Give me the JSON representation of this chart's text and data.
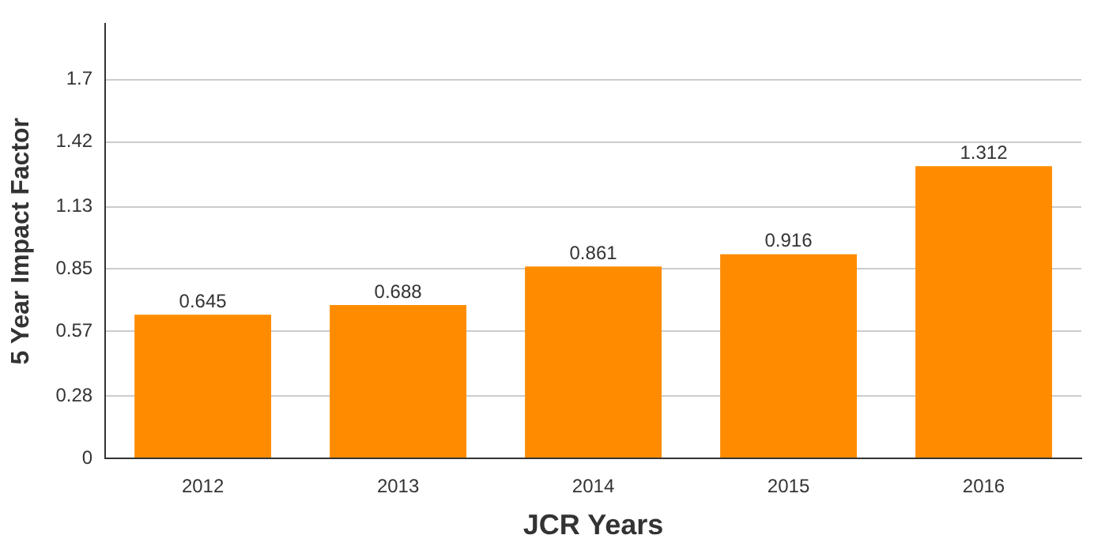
{
  "chart_data": {
    "type": "bar",
    "xlabel": "JCR Years",
    "ylabel": "5 Year Impact Factor",
    "categories": [
      "2012",
      "2013",
      "2014",
      "2015",
      "2016"
    ],
    "values": [
      0.645,
      0.688,
      0.861,
      0.916,
      1.312
    ],
    "color": "#ff8c00",
    "ylim": [
      0,
      1.95
    ],
    "yticks": [
      0,
      0.28,
      0.57,
      0.85,
      1.13,
      1.42,
      1.7
    ],
    "grid": "y",
    "data_labels": true,
    "legend": false
  }
}
